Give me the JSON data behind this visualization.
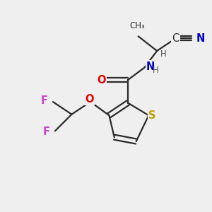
{
  "bg_color": "#efefef",
  "bond_color": "#2a2a2a",
  "atom_colors": {
    "S": "#b8a000",
    "O": "#ee0000",
    "N": "#0000cc",
    "F": "#cc44cc",
    "C": "#2a2a2a",
    "H": "#555555"
  },
  "font_size": 10.5,
  "small_font": 8.5,
  "lw": 1.6
}
